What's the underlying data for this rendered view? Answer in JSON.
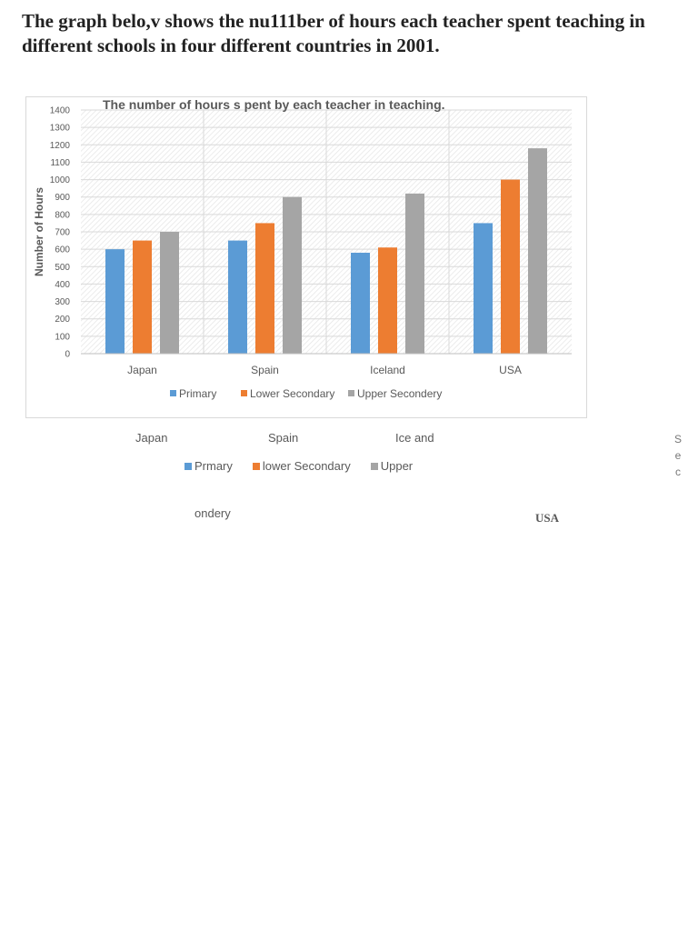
{
  "heading": "The graph belo,v shows the nu111ber of hours each teacher spent teaching in different schools in four different countries in 2001.",
  "chart_data": {
    "type": "bar",
    "title": "The number of hours s pent by each teacher in teaching.",
    "xlabel": "",
    "ylabel": "Number of Hours",
    "ylim": [
      0,
      1400
    ],
    "yticks": [
      0,
      100,
      200,
      300,
      400,
      500,
      600,
      700,
      800,
      900,
      1000,
      1100,
      1200,
      1300,
      1400
    ],
    "categories": [
      "Japan",
      "Spain",
      "Iceland",
      "USA"
    ],
    "series": [
      {
        "name": "Primary",
        "color": "#5b9bd5",
        "values": [
          600,
          650,
          580,
          750
        ]
      },
      {
        "name": "Lower Secondary",
        "color": "#ed7d31",
        "values": [
          650,
          750,
          610,
          1000
        ]
      },
      {
        "name": "Upper Secondery",
        "color": "#a5a5a5",
        "values": [
          700,
          900,
          920,
          1180
        ]
      }
    ],
    "legend": "bottom",
    "grid": true
  },
  "stray_text": {
    "japan": "Japan",
    "spain": "Spain",
    "iceland": "Ice and",
    "usa": "USA",
    "legend_primary": "Prmary",
    "legend_lower": "lower Secondary",
    "legend_upper": "Upper",
    "ondery": "ondery",
    "vertical": [
      "S",
      "e",
      "c"
    ]
  }
}
